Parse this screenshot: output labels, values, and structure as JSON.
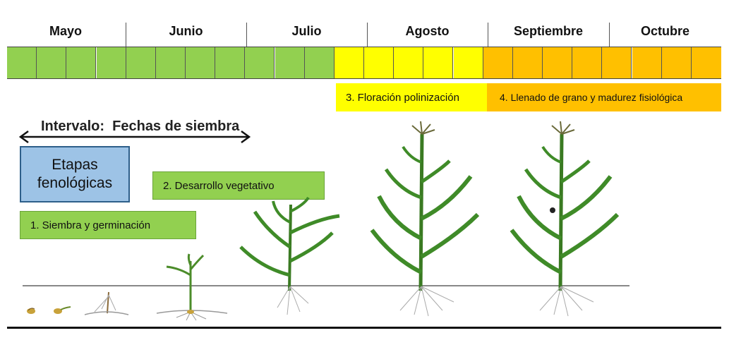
{
  "months": [
    "Mayo",
    "Junio",
    "Julio",
    "Agosto",
    "Septiembre",
    "Octubre"
  ],
  "timeline": {
    "weeks_green": 11,
    "weeks_yellow": 5,
    "weeks_orange": 8,
    "colors": {
      "green": "#92d050",
      "yellow": "#ffff00",
      "orange": "#ffc000"
    }
  },
  "stages": {
    "floracion": "3. Floración polinización",
    "llenado": "4. Llenado de grano y  madurez fisiológica",
    "desarrollo": "2. Desarrollo vegetativo",
    "siembra": "1. Siembra y germinación"
  },
  "legend": {
    "etapas": "Etapas fenológicas",
    "intervalo": "Intervalo:  Fechas de siembra"
  },
  "icons": [
    "double-arrow-icon",
    "seed-icon",
    "seedling-icon",
    "corn-plant-icon"
  ]
}
